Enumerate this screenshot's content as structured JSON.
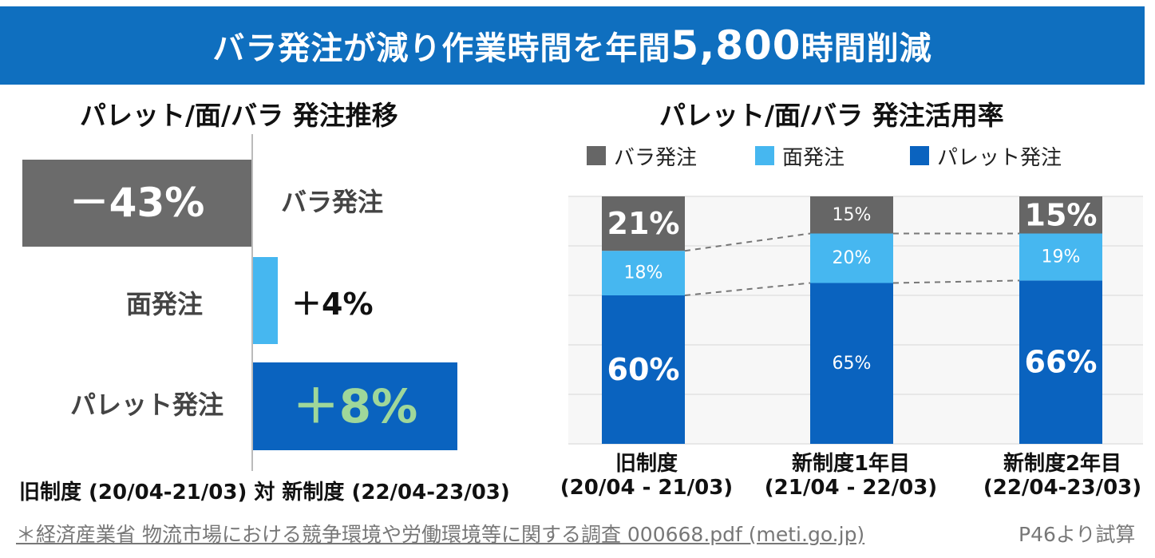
{
  "banner": {
    "prefix": "バラ発注が減り作業時間を年間",
    "number": "5,800",
    "suffix": "時間削減"
  },
  "left": {
    "title": "パレット/面/バラ 発注推移",
    "bara": {
      "label": "バラ発注",
      "value": "－43%"
    },
    "men": {
      "label": "面発注",
      "value": "＋4%"
    },
    "pallet": {
      "label": "パレット発注",
      "value": "＋8%"
    },
    "comparison": "旧制度 (20/04-21/03) 対 新制度 (22/04-23/03)"
  },
  "right": {
    "title": "パレット/面/バラ 発注活用率",
    "legend": [
      {
        "label": "バラ発注",
        "color": "#666666"
      },
      {
        "label": "面発注",
        "color": "#46b7f0"
      },
      {
        "label": "パレット発注",
        "color": "#0a63bf"
      }
    ]
  },
  "chart_data": [
    {
      "type": "bar",
      "title": "パレット/面/バラ 発注推移",
      "categories": [
        "バラ発注",
        "面発注",
        "パレット発注"
      ],
      "values": [
        -43,
        4,
        8
      ],
      "value_labels": [
        "－43%",
        "＋4%",
        "＋8%"
      ],
      "colors": [
        "#6b6b6b",
        "#46b7f0",
        "#0a63bf"
      ],
      "orientation": "horizontal",
      "xlabel": "",
      "ylabel": ""
    },
    {
      "type": "bar",
      "stacked": true,
      "title": "パレット/面/バラ 発注活用率",
      "categories": [
        {
          "line1": "旧制度",
          "line2": "(20/04 - 21/03)"
        },
        {
          "line1": "新制度1年目",
          "line2": "(21/04 - 22/03)"
        },
        {
          "line1": "新制度2年目",
          "line2": "(22/04-23/03)"
        }
      ],
      "series": [
        {
          "name": "パレット発注",
          "color": "#0a63bf",
          "values": [
            60,
            65,
            66
          ]
        },
        {
          "name": "面発注",
          "color": "#46b7f0",
          "values": [
            18,
            20,
            19
          ]
        },
        {
          "name": "バラ発注",
          "color": "#666666",
          "values": [
            21,
            15,
            15
          ]
        }
      ],
      "ylim": [
        0,
        100
      ],
      "grid": true,
      "legend": "top",
      "xlabel": "",
      "ylabel": ""
    }
  ],
  "source": {
    "text": "＊経済産業省 物流市場における競争環境や労働環境等に関する調査 000668.pdf (meti.go.jp)",
    "suffix": " P46より試算"
  }
}
